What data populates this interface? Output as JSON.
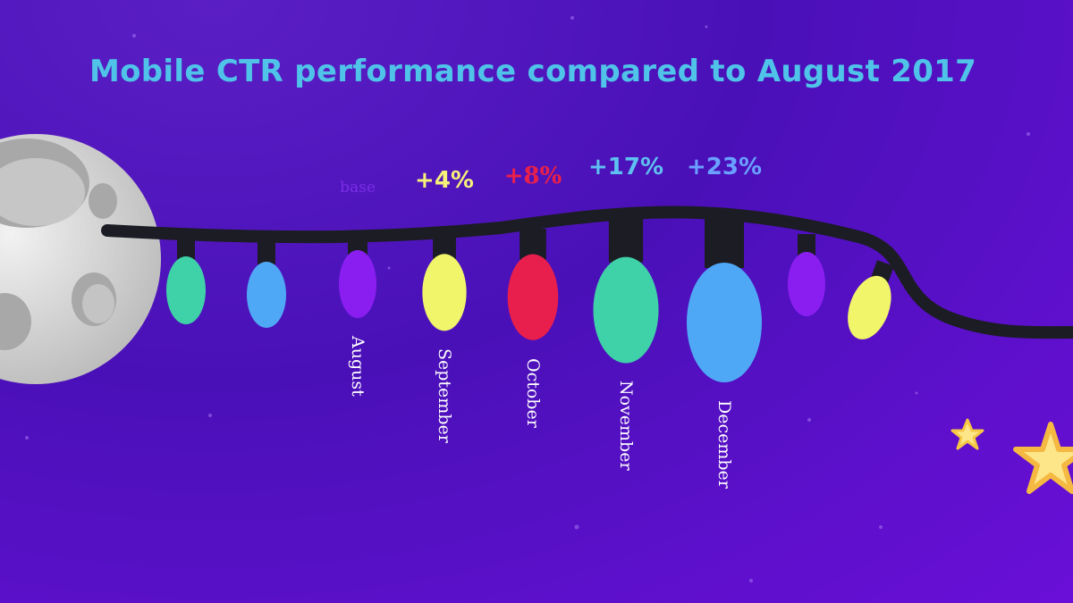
{
  "chart_data": {
    "type": "bar",
    "title": "Mobile CTR performance compared to August 2017",
    "categories": [
      "August",
      "September",
      "October",
      "November",
      "December"
    ],
    "values": [
      0,
      4,
      8,
      17,
      23
    ],
    "value_labels": [
      "base",
      "+4%",
      "+8%",
      "+17%",
      "+23%"
    ],
    "unit": "%",
    "label_colors": [
      "#7a2ee8",
      "#f4f07a",
      "#e8204a",
      "#5ec0f0",
      "#6aa0ff"
    ],
    "bulb_colors": [
      "#8a1ef0",
      "#f0f56a",
      "#e81f4c",
      "#3fd1a8",
      "#4fa8f5"
    ],
    "decor_bulb_colors": [
      "#3fd1a8",
      "#4fa8f5",
      "#8a1ef0",
      "#f0f56a"
    ],
    "colors": {
      "background": "#4a10b8",
      "title": "#4fc3e8",
      "wire": "#1c1c24",
      "moon": "#d9d9d9",
      "star": "#fde68a"
    }
  }
}
